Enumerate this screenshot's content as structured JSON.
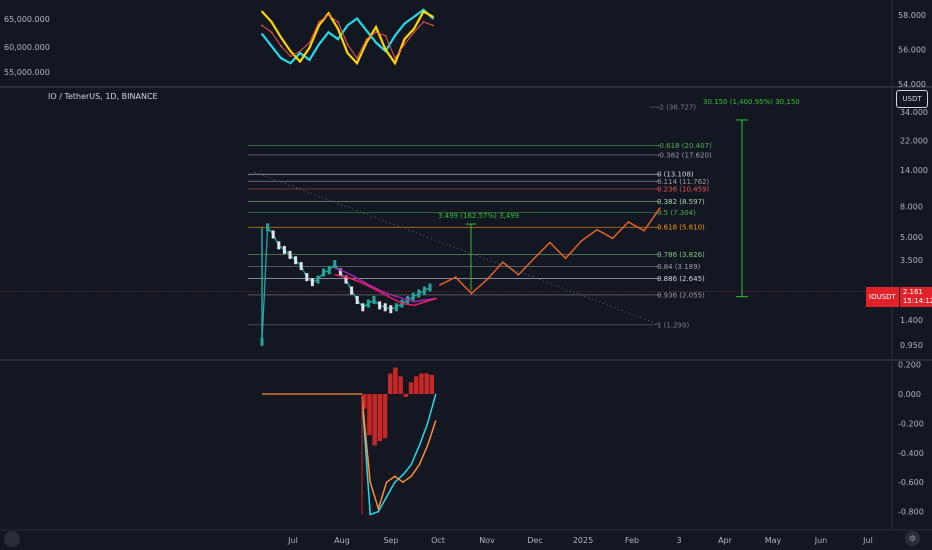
{
  "symbol_legend": "IO / TetherUS, 1D, BINANCE",
  "currency_button": "USDT",
  "price_badge": {
    "symbol": "IOUSDT",
    "price": "2.161",
    "countdown": "15:14:12"
  },
  "colors": {
    "background": "#131722",
    "up": "#26a69a",
    "down": "#ef5350",
    "projection": "#e0622a",
    "measure": "#2fc22f",
    "current_line": "#e0222a"
  },
  "icons": {
    "logo": "tradingview-logo-icon",
    "settings": "settings-icon"
  },
  "chart_data": [
    {
      "type": "line",
      "panel": "top-comparison",
      "y_ticks_left": [
        "65,000.000",
        "60,000.000",
        "55,000.000"
      ],
      "y_ticks_right": [
        "58.000",
        "56.000",
        "54.000"
      ],
      "series": [
        {
          "values": [
            56.9,
            56.2,
            55.5,
            55.2,
            55.8,
            55.4,
            56.3,
            57.0,
            56.6,
            57.4,
            57.8,
            57.1,
            56.4,
            55.9,
            56.8,
            57.5,
            57.9,
            58.3,
            57.8
          ]
        },
        {
          "values": [
            58.2,
            57.6,
            56.7,
            55.9,
            55.3,
            56.1,
            57.4,
            58.1,
            57.2,
            55.8,
            55.2,
            56.4,
            57.3,
            56.0,
            55.2,
            56.6,
            57.2,
            58.2,
            57.9
          ]
        },
        {
          "values": [
            57.4,
            57.0,
            56.2,
            55.6,
            55.9,
            56.4,
            57.6,
            58.0,
            57.6,
            56.3,
            55.5,
            56.6,
            57.0,
            56.8,
            55.5,
            56.3,
            57.0,
            57.6,
            57.4
          ]
        }
      ]
    },
    {
      "type": "line",
      "panel": "main-price",
      "y_axis_scale": "log",
      "y_ticks": [
        "34.000",
        "22.000",
        "14.000",
        "8.000",
        "5.000",
        "3.500",
        "1.400",
        "0.950"
      ],
      "x_ticks": [
        "Jul",
        "Aug",
        "Sep",
        "Oct",
        "Nov",
        "Dec",
        "2025",
        "Feb",
        "3",
        "Apr",
        "May",
        "Jun",
        "Jul"
      ],
      "price": [
        1.0,
        5.8,
        5.2,
        4.4,
        4.1,
        3.8,
        3.5,
        3.2,
        2.7,
        2.5,
        2.6,
        2.9,
        3.0,
        3.3,
        2.9,
        2.6,
        2.2,
        1.9,
        1.7,
        1.8,
        1.9,
        1.75,
        1.7,
        1.65,
        1.7,
        1.8,
        1.9,
        2.0,
        2.1,
        2.2,
        2.3
      ],
      "ma_purple": [
        3.1,
        2.9,
        2.65,
        2.4,
        2.2,
        2.05,
        1.95,
        1.85,
        1.9,
        1.95
      ],
      "ma_red": [
        2.8,
        2.7,
        2.55,
        2.35,
        2.15,
        1.95,
        1.8,
        1.75,
        1.85,
        1.95
      ],
      "projection": [
        2.4,
        2.7,
        2.1,
        2.6,
        3.4,
        2.8,
        3.6,
        4.6,
        3.6,
        4.7,
        5.6,
        4.9,
        6.3,
        5.5,
        7.8
      ],
      "fib_levels": [
        {
          "label": "-2 (36.727)",
          "value": 36.727,
          "color": "#787b86"
        },
        {
          "label": "-0.618 (20.407)",
          "value": 20.407,
          "color": "#4caf50"
        },
        {
          "label": "-0.382 (17.620)",
          "value": 17.62,
          "color": "#9e9e9e"
        },
        {
          "label": "0 (13.108)",
          "value": 13.108,
          "color": "#d1d4dc"
        },
        {
          "label": "0.114 (11.762)",
          "value": 11.762,
          "color": "#9e9e9e"
        },
        {
          "label": "0.236 (10.459)",
          "value": 10.459,
          "color": "#ef5350"
        },
        {
          "label": "0.382 (8.597)",
          "value": 8.597,
          "color": "#a5d6a7"
        },
        {
          "label": "0.5 (7.304)",
          "value": 7.304,
          "color": "#4caf50"
        },
        {
          "label": "0.618 (5.810)",
          "value": 5.81,
          "color": "#ff9800"
        },
        {
          "label": "0.786 (3.826)",
          "value": 3.826,
          "color": "#81c784"
        },
        {
          "label": "0.84 (3.189)",
          "value": 3.189,
          "color": "#9e9e9e"
        },
        {
          "label": "0.886 (2.645)",
          "value": 2.645,
          "color": "#d1d4dc"
        },
        {
          "label": "0.936 (2.055)",
          "value": 2.055,
          "color": "#9e9e9e"
        },
        {
          "label": "1 (1.299)",
          "value": 1.299,
          "color": "#787b86"
        }
      ],
      "annotations": [
        {
          "text": "30.150 (1,400.95%) 30,150",
          "color": "#2fc22f"
        },
        {
          "text": "3.499 (162.57%) 3,499",
          "color": "#2fc22f"
        }
      ]
    },
    {
      "type": "line",
      "panel": "oscillator",
      "y_ticks": [
        "0.200",
        "0.000",
        "-0.200",
        "-0.400",
        "-0.600",
        "-0.800"
      ],
      "ylim": [
        -0.85,
        0.21
      ],
      "series": [
        {
          "color": "#26d9e8",
          "values": [
            -0.02,
            -0.82,
            -0.8,
            -0.7,
            -0.6,
            -0.55,
            -0.48,
            -0.35,
            -0.2,
            0.0
          ]
        },
        {
          "color": "#ff8c37",
          "values": [
            -0.02,
            -0.6,
            -0.78,
            -0.6,
            -0.56,
            -0.6,
            -0.56,
            -0.48,
            -0.35,
            -0.18
          ]
        }
      ],
      "histogram": [
        -0.1,
        -0.28,
        -0.35,
        -0.32,
        -0.3,
        0.14,
        0.18,
        0.12,
        -0.02,
        0.08,
        0.12,
        0.14,
        0.14,
        0.13
      ]
    }
  ]
}
